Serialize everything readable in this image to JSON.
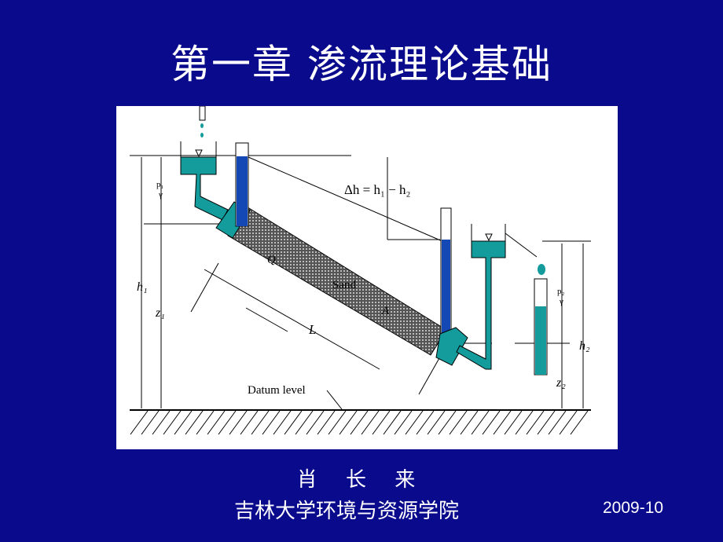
{
  "slide": {
    "title": "第一章  渗流理论基础",
    "author": "肖 长 来",
    "institution": "吉林大学环境与资源学院",
    "date": "2009-10"
  },
  "diagram": {
    "labels": {
      "delta_h": "Δh = h₁ − h₂",
      "h1": "h₁",
      "z1": "z₁",
      "p1": "p₁",
      "gamma1": "γ",
      "h2": "h₂",
      "z2": "z₂",
      "p2": "p₂",
      "gamma2": "γ",
      "L": "L",
      "Q": "Q",
      "A": "A",
      "sand": "Sand",
      "datum": "Datum level"
    },
    "colors": {
      "background": "#0a0a8c",
      "water_teal": "#149c9c",
      "piezometer_blue": "#1448b4"
    }
  }
}
